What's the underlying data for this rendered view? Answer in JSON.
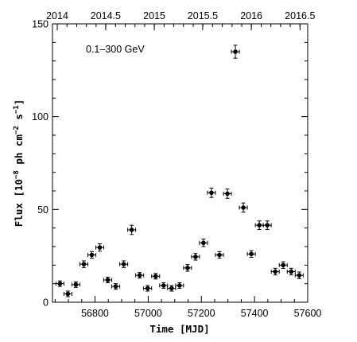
{
  "chart_data": {
    "type": "scatter",
    "annotation": "0.1–300 GeV",
    "xlabel": "Time [MJD]",
    "ylabel_main": "Flux [10",
    "ylabel_exp1": "−8",
    "ylabel_mid": " ph cm",
    "ylabel_exp2": "−2",
    "ylabel_mid2": " s",
    "ylabel_exp3": "−1",
    "ylabel_end": "]",
    "xlim": [
      56640,
      57600
    ],
    "ylim": [
      0,
      150
    ],
    "xticks": [
      56800,
      57000,
      57200,
      57400,
      57600
    ],
    "xtick_labels": [
      "56800",
      "57000",
      "57200",
      "57400",
      "57600"
    ],
    "yticks": [
      0,
      50,
      100,
      150
    ],
    "ytick_labels": [
      "0",
      "50",
      "100",
      "150"
    ],
    "top_axis": {
      "tick_labels": [
        "2014",
        "2014.5",
        "2015",
        "2015.5",
        "2016",
        "2016.5"
      ],
      "tick_mjd": [
        56658,
        56840,
        57023,
        57205,
        57388,
        57571
      ]
    },
    "series": [
      {
        "x": [
          56668,
          56698,
          56728,
          56758,
          56788,
          56818,
          56848,
          56878,
          56908,
          56938,
          56968,
          56998,
          57028,
          57058,
          57088,
          57118,
          57148,
          57178,
          57208,
          57238,
          57268,
          57298,
          57328,
          57358,
          57388,
          57418,
          57448,
          57478,
          57508,
          57538,
          57568
        ],
        "y": [
          10,
          4.5,
          9.5,
          20.5,
          25.5,
          29.5,
          12,
          8.5,
          20.5,
          39,
          14.5,
          7.5,
          14,
          9,
          7.5,
          9,
          18.5,
          24.5,
          32,
          59,
          25.5,
          58.5,
          135,
          51,
          26,
          41.5,
          41.5,
          16.5,
          20,
          16.5,
          14.5
        ],
        "yerr": [
          1.5,
          1.5,
          1.5,
          1.8,
          1.8,
          2,
          1.5,
          1.5,
          1.8,
          2.5,
          1.5,
          1.5,
          1.5,
          1.5,
          1.5,
          1.5,
          1.8,
          1.8,
          2,
          2.5,
          1.8,
          2.5,
          3.5,
          2.5,
          1.8,
          2.3,
          2.3,
          1.8,
          1.8,
          1.8,
          1.8
        ],
        "xerr": 15
      }
    ],
    "grid": false
  }
}
